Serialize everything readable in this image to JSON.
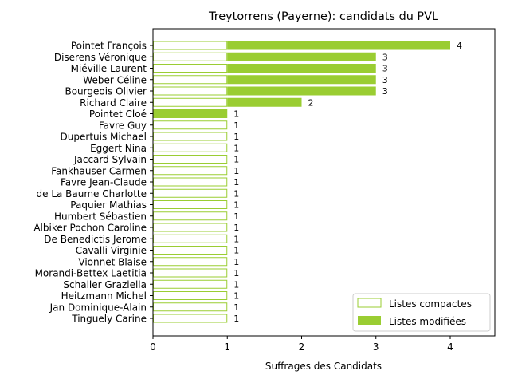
{
  "chart_data": {
    "type": "bar",
    "orientation": "horizontal",
    "title": "Treytorrens (Payerne): candidats du PVL",
    "xlabel": "Suffrages des Candidats",
    "ylabel": "",
    "xlim": [
      0,
      4.6
    ],
    "xticks": [
      0,
      1,
      2,
      3,
      4
    ],
    "grid": false,
    "legend_position": "bottom-right",
    "categories": [
      "Pointet François",
      "Diserens Véronique",
      "Miéville Laurent",
      "Weber Céline",
      "Bourgeois Olivier",
      "Richard Claire",
      "Pointet Cloé",
      "Favre Guy",
      "Dupertuis Michael",
      "Eggert Nina",
      "Jaccard Sylvain",
      "Fankhauser Carmen",
      "Favre Jean-Claude",
      "de La Baume Charlotte",
      "Paquier Mathias",
      "Humbert Sébastien",
      "Albiker Pochon Caroline",
      "De Benedictis Jerome",
      "Cavalli Virginie",
      "Vionnet Blaise",
      "Morandi-Bettex Laetitia",
      "Schaller Graziella",
      "Heitzmann Michel",
      "Jan Dominique-Alain",
      "Tinguely Carine"
    ],
    "series": [
      {
        "name": "Listes compactes",
        "style": "outline",
        "color": "#9acd32",
        "values": [
          1,
          1,
          1,
          1,
          1,
          1,
          0,
          1,
          1,
          1,
          1,
          1,
          1,
          1,
          1,
          1,
          1,
          1,
          1,
          1,
          1,
          1,
          1,
          1,
          1
        ]
      },
      {
        "name": "Listes modifiées",
        "style": "filled",
        "color": "#9acd32",
        "values": [
          3,
          2,
          2,
          2,
          2,
          1,
          1,
          0,
          0,
          0,
          0,
          0,
          0,
          0,
          0,
          0,
          0,
          0,
          0,
          0,
          0,
          0,
          0,
          0,
          0
        ]
      }
    ],
    "totals": [
      4,
      3,
      3,
      3,
      3,
      2,
      1,
      1,
      1,
      1,
      1,
      1,
      1,
      1,
      1,
      1,
      1,
      1,
      1,
      1,
      1,
      1,
      1,
      1,
      1
    ]
  }
}
